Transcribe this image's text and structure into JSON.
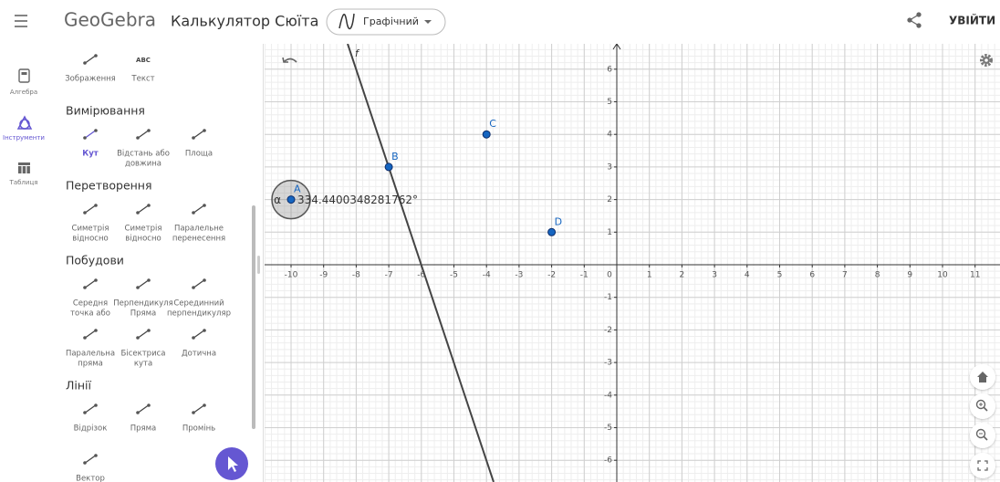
{
  "header": {
    "logo": "GeoGebra",
    "app_title": "Калькулятор Сюїта",
    "mode": "Графічний",
    "login": "УВІЙТИ"
  },
  "rail": [
    {
      "label": "Алгебра"
    },
    {
      "label": "Інструменти",
      "active": true
    },
    {
      "label": "Таблиця"
    }
  ],
  "tools": {
    "pinned": [
      {
        "label": [
          "Зображення"
        ]
      },
      {
        "icon_text": "ABC",
        "label": [
          "Текст"
        ]
      }
    ],
    "sections": [
      {
        "title": "Вимірювання",
        "rows": [
          [
            {
              "label": [
                "Кут"
              ],
              "selected": true
            },
            {
              "label": [
                "Відстань або",
                "довжина"
              ]
            },
            {
              "label": [
                "Площа"
              ]
            }
          ]
        ]
      },
      {
        "title": "Перетворення",
        "rows": [
          [
            {
              "label": [
                "Симетрія",
                "відносно"
              ]
            },
            {
              "label": [
                "Симетрія",
                "відносно"
              ]
            },
            {
              "label": [
                "Паралельне",
                "перенесення"
              ]
            }
          ]
        ]
      },
      {
        "title": "Побудови",
        "rows": [
          [
            {
              "label": [
                "Середня",
                "точка або"
              ]
            },
            {
              "label": [
                "Перпендикуля",
                "Пряма"
              ]
            },
            {
              "label": [
                "Серединний",
                "перпендикуляр"
              ]
            }
          ],
          [
            {
              "label": [
                "Паралельна",
                "пряма"
              ]
            },
            {
              "label": [
                "Бісектриса",
                "кута"
              ]
            },
            {
              "label": [
                "Дотична"
              ]
            }
          ]
        ]
      },
      {
        "title": "Лінії",
        "rows": [
          [
            {
              "label": [
                "Відрізок"
              ]
            },
            {
              "label": [
                "Пряма"
              ]
            },
            {
              "label": [
                "Промінь"
              ]
            }
          ],
          [
            {
              "label": [
                "Вектор"
              ]
            }
          ]
        ]
      }
    ]
  },
  "graphics": {
    "xticks": [
      -10,
      -9,
      -8,
      -7,
      -6,
      -5,
      -4,
      -3,
      -2,
      -1,
      0,
      1,
      2,
      3,
      4,
      5,
      6,
      7,
      8,
      9,
      10,
      11
    ],
    "yticks": [
      -6,
      -5,
      -4,
      -3,
      -2,
      -1,
      1,
      2,
      3,
      4,
      5,
      6
    ],
    "line_label": "f",
    "points": [
      {
        "label": "A",
        "x": -10,
        "y": 2
      },
      {
        "label": "B",
        "x": -7,
        "y": 3
      },
      {
        "label": "C",
        "x": -4,
        "y": 4
      },
      {
        "label": "D",
        "x": -2,
        "y": 1
      }
    ],
    "angle": {
      "name": "α",
      "value_text": "334.4400348281762°"
    }
  }
}
